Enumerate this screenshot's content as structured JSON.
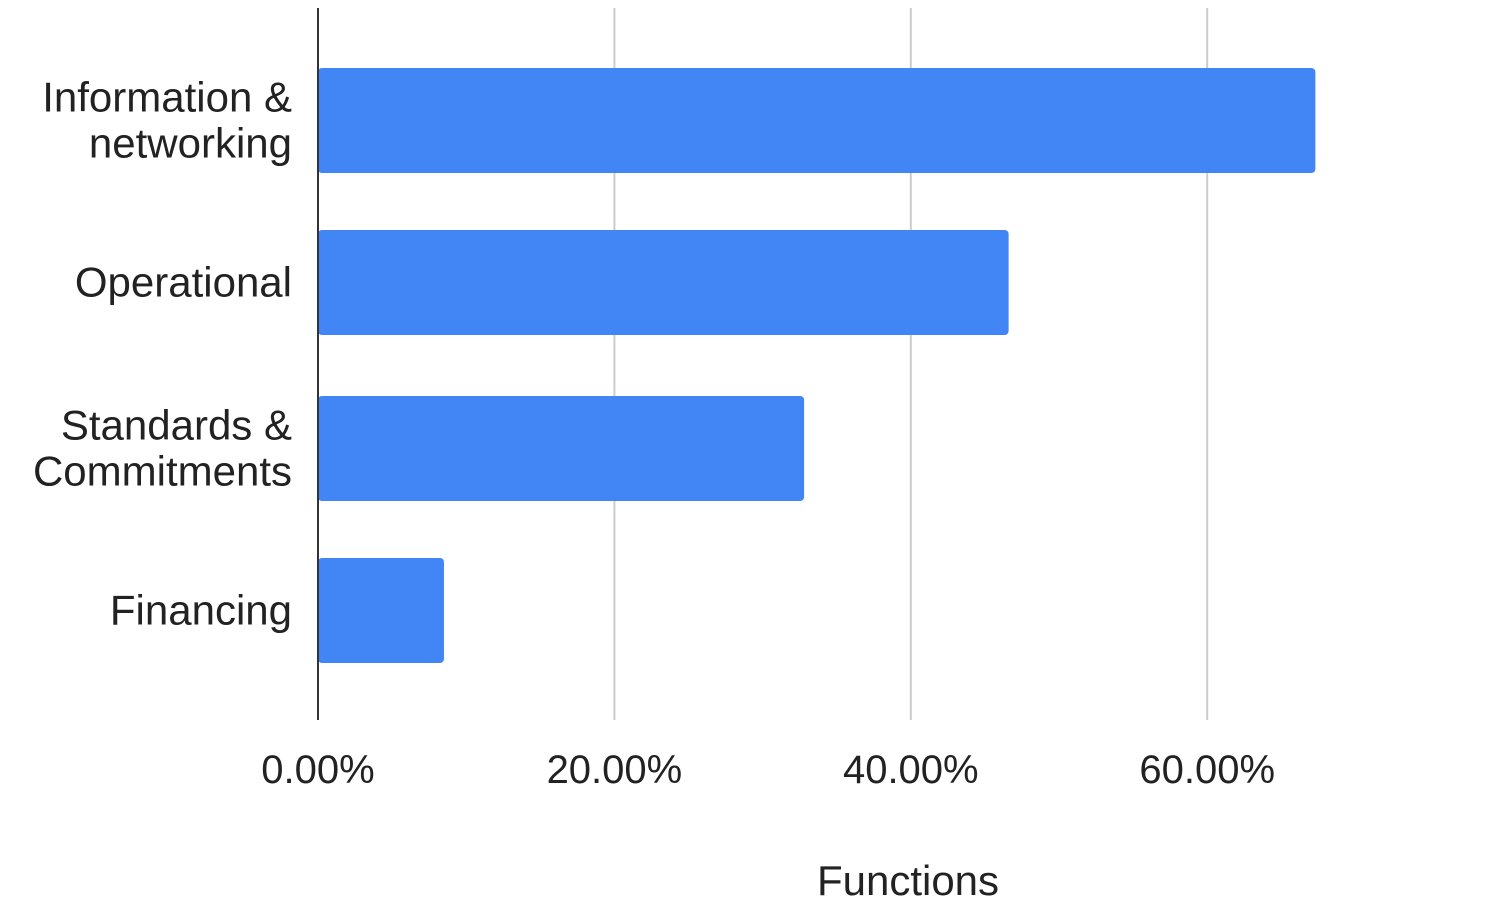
{
  "chart_data": {
    "type": "bar",
    "orientation": "horizontal",
    "categories": [
      [
        "Information &",
        "networking"
      ],
      [
        "Operational"
      ],
      [
        "Standards &",
        "Commitments"
      ],
      [
        "Financing"
      ]
    ],
    "values": [
      0.673,
      0.466,
      0.328,
      0.085
    ],
    "title": "",
    "xlabel": "Functions",
    "ylabel": "",
    "xlim": [
      0,
      0.8
    ],
    "x_ticks": [
      0,
      0.2,
      0.4,
      0.6
    ],
    "x_tick_labels": [
      "0.00%",
      "20.00%",
      "40.00%",
      "60.00%"
    ],
    "grid": "vertical",
    "legend": "none",
    "colors": {
      "bar": "#4285f4",
      "gridline": "#cccccc",
      "axis": "#333333",
      "text": "#222222"
    }
  }
}
